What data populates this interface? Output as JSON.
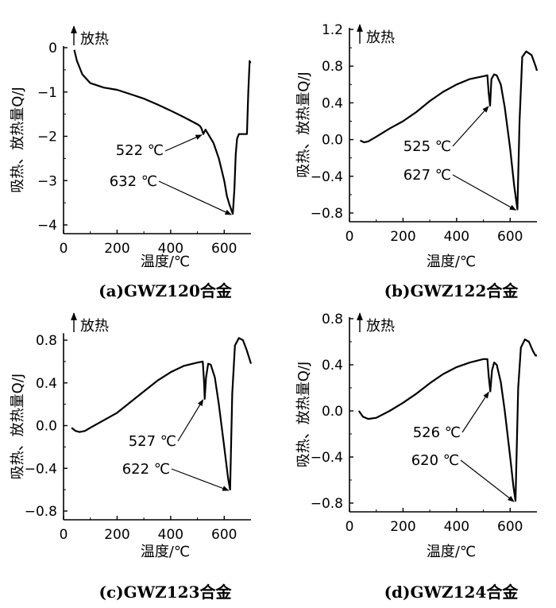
{
  "chart_data": [
    {
      "type": "line",
      "caption": "(a)GWZ120合金",
      "ylabel": "吸热、放热量Q/J",
      "xlabel": "温度/℃",
      "exo_label": "放热",
      "xlim": [
        0,
        700
      ],
      "ylim": [
        -4.2,
        0
      ],
      "xticks": [
        0,
        200,
        400,
        600
      ],
      "yticks": [
        0,
        -1,
        -2,
        -3,
        -4
      ],
      "ytick_labels": [
        "0",
        "−1",
        "−2",
        "−3",
        "−4"
      ],
      "series": [
        {
          "x": [
            40,
            50,
            70,
            100,
            150,
            200,
            250,
            300,
            350,
            400,
            450,
            500,
            510,
            515,
            522,
            530,
            540,
            560,
            580,
            600,
            610,
            620,
            632,
            638,
            643,
            648,
            655,
            670,
            685,
            690,
            695,
            698
          ],
          "y": [
            -0.05,
            -0.3,
            -0.6,
            -0.8,
            -0.9,
            -0.95,
            -1.05,
            -1.15,
            -1.28,
            -1.42,
            -1.57,
            -1.73,
            -1.77,
            -1.82,
            -1.95,
            -1.85,
            -1.95,
            -2.15,
            -2.5,
            -3.0,
            -3.35,
            -3.55,
            -3.75,
            -3.2,
            -2.4,
            -2.05,
            -1.95,
            -1.95,
            -1.95,
            -1.0,
            -0.3,
            -0.35
          ]
        }
      ],
      "annotations": [
        {
          "text": "522 ℃",
          "x": 522,
          "y": -1.95
        },
        {
          "text": "632 ℃",
          "x": 632,
          "y": -3.75
        }
      ]
    },
    {
      "type": "line",
      "caption": "(b)GWZ122合金",
      "ylabel": "吸热、放热量Q/J",
      "xlabel": "温度/℃",
      "exo_label": "放热",
      "xlim": [
        0,
        700
      ],
      "ylim": [
        -0.85,
        1.2
      ],
      "xticks": [
        0,
        200,
        400,
        600
      ],
      "yticks": [
        1.2,
        0.8,
        0.4,
        0.0,
        -0.4,
        -0.8
      ],
      "ytick_labels": [
        "1.2",
        "0.8",
        "0.4",
        "0.0",
        "−0.4",
        "−0.8"
      ],
      "series": [
        {
          "x": [
            40,
            55,
            70,
            100,
            150,
            200,
            250,
            300,
            350,
            400,
            450,
            500,
            515,
            520,
            525,
            530,
            540,
            550,
            565,
            580,
            600,
            615,
            627,
            635,
            645,
            660,
            680,
            695,
            700
          ],
          "y": [
            -0.01,
            -0.03,
            -0.02,
            0.03,
            0.12,
            0.2,
            0.3,
            0.42,
            0.52,
            0.6,
            0.66,
            0.69,
            0.7,
            0.5,
            0.37,
            0.66,
            0.71,
            0.7,
            0.6,
            0.35,
            -0.1,
            -0.5,
            -0.76,
            0.2,
            0.9,
            0.96,
            0.92,
            0.8,
            0.75
          ]
        }
      ],
      "annotations": [
        {
          "text": "525 ℃",
          "x": 525,
          "y": 0.37
        },
        {
          "text": "627 ℃",
          "x": 627,
          "y": -0.76
        }
      ]
    },
    {
      "type": "line",
      "caption": "(c)GWZ123合金",
      "ylabel": "吸热、放热量Q/J",
      "xlabel": "温度/℃",
      "exo_label": "放热",
      "xlim": [
        0,
        700
      ],
      "ylim": [
        -0.8,
        0.85
      ],
      "xticks": [
        0,
        200,
        400,
        600
      ],
      "yticks": [
        0.8,
        0.4,
        0.0,
        -0.4,
        -0.8
      ],
      "ytick_labels": [
        "0.8",
        "0.4",
        "0.0",
        "−0.4",
        "−0.8"
      ],
      "series": [
        {
          "x": [
            30,
            45,
            60,
            80,
            100,
            150,
            200,
            250,
            300,
            350,
            400,
            450,
            500,
            520,
            525,
            527,
            532,
            540,
            550,
            565,
            580,
            600,
            615,
            622,
            630,
            640,
            655,
            670,
            685,
            700
          ],
          "y": [
            -0.02,
            -0.05,
            -0.06,
            -0.05,
            -0.02,
            0.05,
            0.12,
            0.22,
            0.32,
            0.42,
            0.5,
            0.56,
            0.59,
            0.6,
            0.4,
            0.25,
            0.45,
            0.58,
            0.57,
            0.45,
            0.2,
            -0.2,
            -0.5,
            -0.6,
            0.3,
            0.75,
            0.82,
            0.8,
            0.7,
            0.58
          ]
        }
      ],
      "annotations": [
        {
          "text": "527 ℃",
          "x": 527,
          "y": 0.25
        },
        {
          "text": "622 ℃",
          "x": 622,
          "y": -0.6
        }
      ]
    },
    {
      "type": "line",
      "caption": "(d)GWZ124合金",
      "ylabel": "吸热、放热量Q/J",
      "xlabel": "温度/℃",
      "exo_label": "放热",
      "xlim": [
        0,
        700
      ],
      "ylim": [
        -0.85,
        0.8
      ],
      "xticks": [
        0,
        200,
        400,
        600
      ],
      "yticks": [
        0.8,
        0.4,
        0.0,
        -0.4,
        -0.8
      ],
      "ytick_labels": [
        "0.8",
        "0.4",
        "0.0",
        "−0.4",
        "−0.8"
      ],
      "series": [
        {
          "x": [
            35,
            50,
            70,
            100,
            150,
            200,
            250,
            300,
            350,
            400,
            450,
            500,
            515,
            520,
            526,
            532,
            540,
            550,
            565,
            580,
            600,
            612,
            620,
            630,
            640,
            655,
            670,
            685,
            695,
            700
          ],
          "y": [
            0.0,
            -0.05,
            -0.07,
            -0.06,
            0.0,
            0.07,
            0.15,
            0.24,
            0.32,
            0.38,
            0.42,
            0.45,
            0.45,
            0.3,
            0.17,
            0.35,
            0.42,
            0.4,
            0.25,
            0.0,
            -0.4,
            -0.65,
            -0.78,
            0.2,
            0.55,
            0.62,
            0.6,
            0.52,
            0.48,
            0.48
          ]
        }
      ],
      "annotations": [
        {
          "text": "526 ℃",
          "x": 526,
          "y": 0.17
        },
        {
          "text": "620 ℃",
          "x": 620,
          "y": -0.78
        }
      ]
    }
  ]
}
